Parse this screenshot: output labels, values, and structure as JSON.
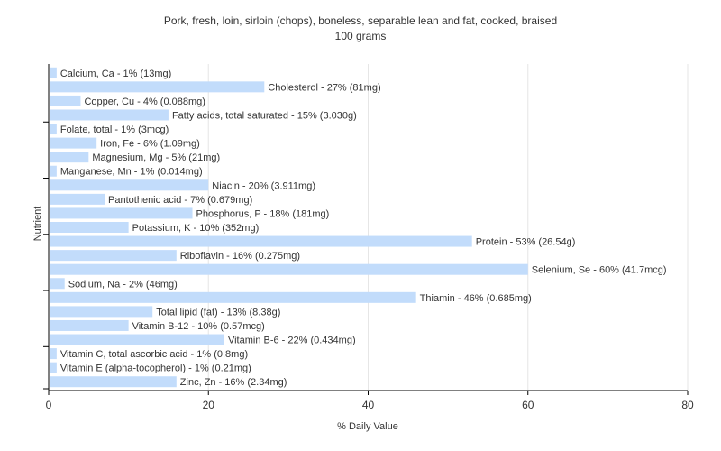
{
  "chart_data": {
    "type": "bar",
    "orientation": "horizontal",
    "title": "Pork, fresh, loin, sirloin (chops), boneless, separable lean and fat, cooked, braised",
    "subtitle": "100 grams",
    "xlabel": "% Daily Value",
    "ylabel": "Nutrient",
    "xlim": [
      0,
      80
    ],
    "xticks": [
      "0",
      "20",
      "40",
      "60",
      "80"
    ],
    "grid": true,
    "bar_color": "#c2dcfb",
    "categories": [
      "Calcium, Ca",
      "Cholesterol",
      "Copper, Cu",
      "Fatty acids, total saturated",
      "Folate, total",
      "Iron, Fe",
      "Magnesium, Mg",
      "Manganese, Mn",
      "Niacin",
      "Pantothenic acid",
      "Phosphorus, P",
      "Potassium, K",
      "Protein",
      "Riboflavin",
      "Selenium, Se",
      "Sodium, Na",
      "Thiamin",
      "Total lipid (fat)",
      "Vitamin B-12",
      "Vitamin B-6",
      "Vitamin C, total ascorbic acid",
      "Vitamin E (alpha-tocopherol)",
      "Zinc, Zn"
    ],
    "values": [
      1,
      27,
      4,
      15,
      1,
      6,
      5,
      1,
      20,
      7,
      18,
      10,
      53,
      16,
      60,
      2,
      46,
      13,
      10,
      22,
      1,
      1,
      16
    ],
    "labels": [
      "Calcium, Ca - 1% (13mg)",
      "Cholesterol - 27% (81mg)",
      "Copper, Cu - 4% (0.088mg)",
      "Fatty acids, total saturated - 15% (3.030g)",
      "Folate, total - 1% (3mcg)",
      "Iron, Fe - 6% (1.09mg)",
      "Magnesium, Mg - 5% (21mg)",
      "Manganese, Mn - 1% (0.014mg)",
      "Niacin - 20% (3.911mg)",
      "Pantothenic acid - 7% (0.679mg)",
      "Phosphorus, P - 18% (181mg)",
      "Potassium, K - 10% (352mg)",
      "Protein - 53% (26.54g)",
      "Riboflavin - 16% (0.275mg)",
      "Selenium, Se - 60% (41.7mcg)",
      "Sodium, Na - 2% (46mg)",
      "Thiamin - 46% (0.685mg)",
      "Total lipid (fat) - 13% (8.38g)",
      "Vitamin B-12 - 10% (0.57mcg)",
      "Vitamin B-6 - 22% (0.434mg)",
      "Vitamin C, total ascorbic acid - 1% (0.8mg)",
      "Vitamin E (alpha-tocopherol) - 1% (0.21mg)",
      "Zinc, Zn - 16% (2.34mg)"
    ]
  }
}
